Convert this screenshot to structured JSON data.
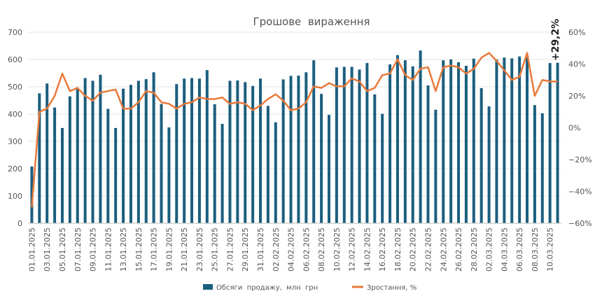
{
  "chart_data": {
    "type": "bar",
    "title": "Грошове  вираження",
    "annotation": "+29,2%",
    "colors": {
      "bars": "#1b5e7e",
      "line": "#e8793a",
      "grid": "#e3e3e3",
      "text": "#555555"
    },
    "x": [
      "01.01.2025",
      "02.01.2025",
      "03.01.2025",
      "04.01.2025",
      "05.01.2025",
      "06.01.2025",
      "07.01.2025",
      "08.01.2025",
      "09.01.2025",
      "10.01.2025",
      "11.01.2025",
      "12.01.2025",
      "13.01.2025",
      "14.01.2025",
      "15.01.2025",
      "16.01.2025",
      "17.01.2025",
      "18.01.2025",
      "19.01.2025",
      "20.01.2025",
      "21.01.2025",
      "22.01.2025",
      "23.01.2025",
      "24.01.2025",
      "25.01.2025",
      "26.01.2025",
      "27.01.2025",
      "28.01.2025",
      "29.01.2025",
      "30.01.2025",
      "31.01.2025",
      "01.02.2025",
      "02.02.2025",
      "03.02.2025",
      "04.02.2025",
      "05.02.2025",
      "06.02.2025",
      "07.02.2025",
      "08.02.2025",
      "09.02.2025",
      "10.02.2025",
      "11.02.2025",
      "12.02.2025",
      "13.02.2025",
      "14.02.2025",
      "15.02.2025",
      "16.02.2025",
      "17.02.2025",
      "18.02.2025",
      "19.02.2025",
      "20.02.2025",
      "21.02.2025",
      "22.02.2025",
      "23.02.2025",
      "24.02.2025",
      "25.02.2025",
      "26.02.2025",
      "27.02.2025",
      "28.02.2025",
      "01.03.2025",
      "02.03.2025",
      "03.03.2025",
      "04.03.2025",
      "05.03.2025",
      "06.03.2025",
      "07.03.2025",
      "08.03.2025",
      "09.03.2025",
      "10.03.2025",
      "11.03.2025"
    ],
    "x_tick_labels": [
      "01.01.2025",
      "03.01.2025",
      "05.01.2025",
      "07.01.2025",
      "09.01.2025",
      "11.01.2025",
      "13.01.2025",
      "15.01.2025",
      "17.01.2025",
      "19.01.2025",
      "21.01.2025",
      "23.01.2025",
      "25.01.2025",
      "27.01.2025",
      "29.01.2025",
      "31.01.2025",
      "02.02.2025",
      "04.02.2025",
      "06.02.2025",
      "08.02.2025",
      "10.02.2025",
      "12.02.2025",
      "14.02.2025",
      "16.02.2025",
      "18.02.2025",
      "20.02.2025",
      "22.02.2025",
      "24.02.2025",
      "26.02.2025",
      "28.02.2025",
      "02.03.2025",
      "04.03.2025",
      "06.03.2025",
      "08.03.2025",
      "10.03.2025"
    ],
    "series": [
      {
        "name": "Обсяги  продажу,  млн  грн",
        "type": "bar",
        "axis": "left",
        "values": [
          208,
          476,
          512,
          424,
          349,
          465,
          495,
          532,
          522,
          544,
          419,
          349,
          493,
          507,
          522,
          528,
          553,
          437,
          351,
          510,
          530,
          532,
          530,
          561,
          436,
          364,
          522,
          523,
          517,
          503,
          530,
          430,
          370,
          527,
          540,
          541,
          553,
          597,
          474,
          397,
          571,
          573,
          573,
          563,
          587,
          472,
          401,
          582,
          616,
          597,
          575,
          633,
          505,
          416,
          597,
          600,
          590,
          577,
          603,
          495,
          428,
          600,
          607,
          604,
          611,
          608,
          433,
          403,
          587,
          588
        ]
      },
      {
        "name": "Зростання, %",
        "type": "line",
        "axis": "right",
        "values": [
          -50,
          10,
          12,
          20,
          34,
          23,
          25,
          20,
          17,
          22,
          23,
          24,
          12,
          12,
          16,
          23,
          22,
          16,
          15,
          12,
          15,
          16,
          19,
          18,
          18,
          19,
          15,
          16,
          15,
          11,
          14,
          18,
          21,
          17,
          11,
          12,
          16,
          26,
          25,
          28,
          26,
          26,
          31,
          29,
          23,
          25,
          33,
          34,
          43,
          33,
          30,
          37,
          38,
          23,
          38,
          39,
          38,
          34,
          37,
          44,
          47,
          42,
          36,
          30,
          32,
          47,
          20,
          30,
          29,
          29
        ]
      }
    ],
    "y_left": {
      "min": 0,
      "max": 700,
      "ticks": [
        "0",
        "100",
        "200",
        "300",
        "400",
        "500",
        "600",
        "700"
      ]
    },
    "y_right": {
      "min": -60,
      "max": 60,
      "ticks": [
        "−60%",
        "−40%",
        "−20%",
        "0%",
        "20%",
        "40%",
        "60%"
      ]
    },
    "grid": true,
    "legend_position": "bottom"
  }
}
